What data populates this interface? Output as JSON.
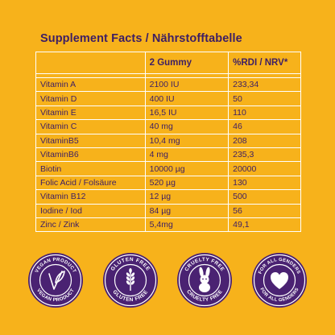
{
  "title": "Supplement Facts / Nährstofftabelle",
  "columns": [
    "",
    "2 Gummy",
    "%RDI / NRV*"
  ],
  "rows": [
    {
      "name": "Vitamin A",
      "amount": "2100 IU",
      "rdi": "233,34"
    },
    {
      "name": "Vitamin D",
      "amount": "400 IU",
      "rdi": "50"
    },
    {
      "name": "Vitamin E",
      "amount": "16,5 IU",
      "rdi": "110"
    },
    {
      "name": "Vitamin C",
      "amount": "40 mg",
      "rdi": "46"
    },
    {
      "name": "VitaminB5",
      "amount": "10,4 mg",
      "rdi": "208"
    },
    {
      "name": "VitaminB6",
      "amount": "4 mg",
      "rdi": "235,3"
    },
    {
      "name": "Biotin",
      "amount": "10000 µg",
      "rdi": "20000"
    },
    {
      "name": "Folic Acid / Folsäure",
      "amount": "520 µg",
      "rdi": "130"
    },
    {
      "name": "Vitamin B12",
      "amount": "12 µg",
      "rdi": "500"
    },
    {
      "name": "Iodine / Iod",
      "amount": "84 µg",
      "rdi": "56"
    },
    {
      "name": "Zinc / Zink",
      "amount": "5,4mg",
      "rdi": "49,1"
    }
  ],
  "badges": [
    {
      "top_text": "VEGAN PRODUCT",
      "bottom_text": "VEGAN PRODUCT",
      "icon": "leaf-v-icon"
    },
    {
      "top_text": "GLUTEN FREE",
      "bottom_text": "GLUTEN FREE",
      "icon": "wheat-icon"
    },
    {
      "top_text": "CRUELTY FREE",
      "bottom_text": "CRUELTY FREE",
      "icon": "bunny-icon"
    },
    {
      "top_text": "FOR ALL GENDERS",
      "bottom_text": "FOR ALL GENDERS",
      "icon": "heart-icon"
    }
  ],
  "colors": {
    "background": "#F7B21B",
    "text": "#3D1E64",
    "badge_fill": "#4A2272",
    "badge_ring": "#FFFFFF",
    "grid": "#FFFFFF"
  }
}
